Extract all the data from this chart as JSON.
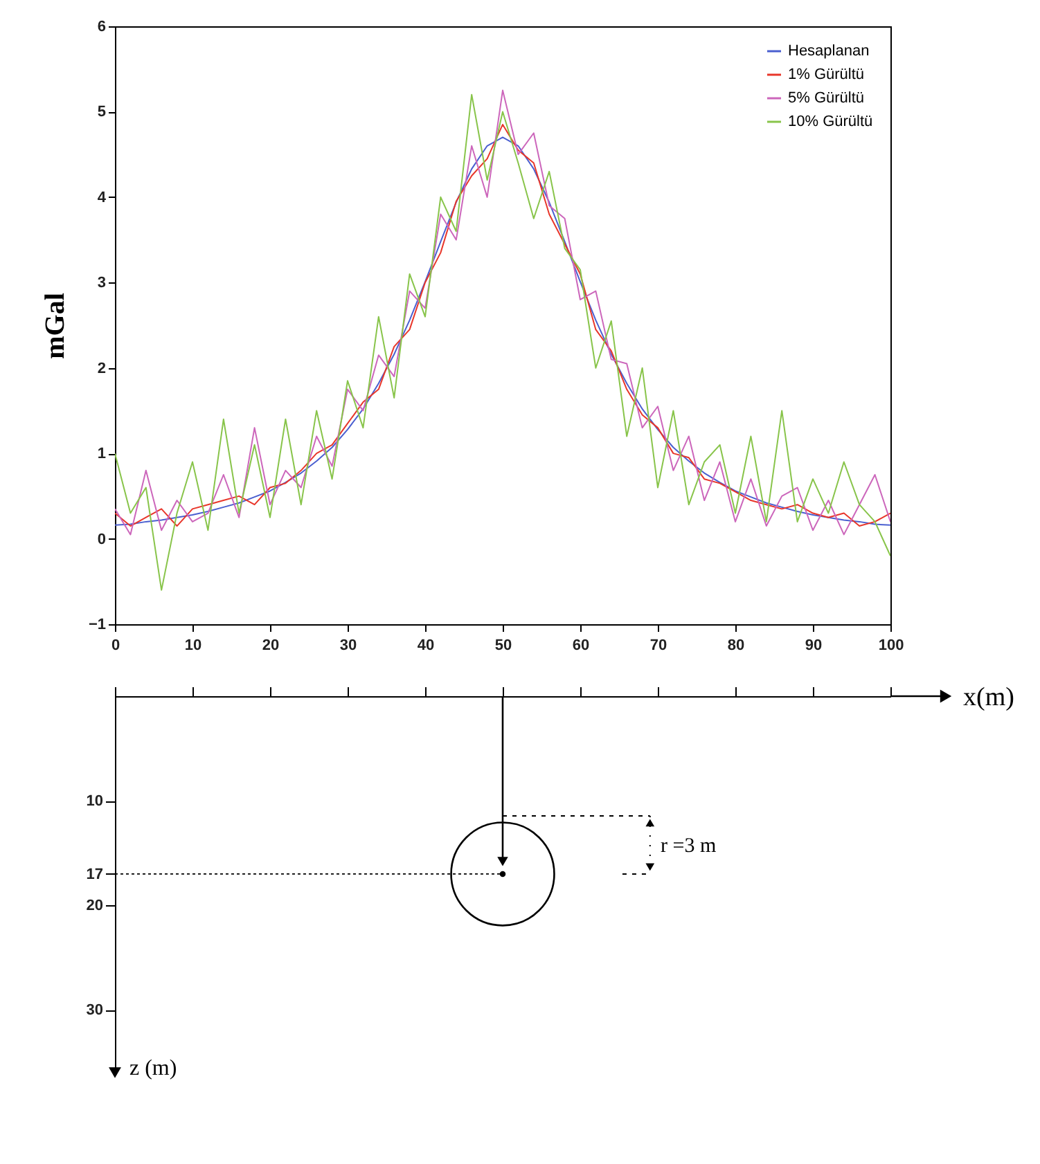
{
  "chart_data": [
    {
      "type": "line",
      "ylabel": "mGal",
      "x": [
        0,
        2,
        4,
        6,
        8,
        10,
        12,
        14,
        16,
        18,
        20,
        22,
        24,
        26,
        28,
        30,
        32,
        34,
        36,
        38,
        40,
        42,
        44,
        46,
        48,
        50,
        52,
        54,
        56,
        58,
        60,
        62,
        64,
        66,
        68,
        70,
        72,
        74,
        76,
        78,
        80,
        82,
        84,
        86,
        88,
        90,
        92,
        94,
        96,
        98,
        100
      ],
      "series": [
        {
          "name": "Hesaplanan",
          "color": "#4a5fd0",
          "values": [
            0.16,
            0.17,
            0.2,
            0.22,
            0.25,
            0.28,
            0.32,
            0.37,
            0.42,
            0.49,
            0.56,
            0.66,
            0.77,
            0.91,
            1.07,
            1.28,
            1.52,
            1.82,
            2.16,
            2.56,
            3.01,
            3.48,
            3.94,
            4.33,
            4.6,
            4.7,
            4.6,
            4.33,
            3.94,
            3.48,
            3.01,
            2.56,
            2.16,
            1.82,
            1.52,
            1.28,
            1.07,
            0.91,
            0.77,
            0.66,
            0.56,
            0.49,
            0.42,
            0.37,
            0.32,
            0.28,
            0.25,
            0.22,
            0.2,
            0.17,
            0.16
          ]
        },
        {
          "name": "1% Gürültü",
          "color": "#e8362a",
          "values": [
            0.3,
            0.15,
            0.25,
            0.35,
            0.15,
            0.35,
            0.4,
            0.45,
            0.5,
            0.4,
            0.6,
            0.65,
            0.8,
            1.0,
            1.1,
            1.35,
            1.6,
            1.75,
            2.25,
            2.45,
            3.0,
            3.35,
            3.95,
            4.25,
            4.45,
            4.85,
            4.55,
            4.4,
            3.8,
            3.45,
            3.1,
            2.45,
            2.2,
            1.75,
            1.45,
            1.3,
            1.0,
            0.95,
            0.7,
            0.65,
            0.55,
            0.45,
            0.4,
            0.35,
            0.4,
            0.3,
            0.25,
            0.3,
            0.15,
            0.2,
            0.3
          ]
        },
        {
          "name": "5% Gürültü",
          "color": "#cc66bb",
          "values": [
            0.35,
            0.05,
            0.8,
            0.1,
            0.45,
            0.2,
            0.3,
            0.75,
            0.25,
            1.3,
            0.4,
            0.8,
            0.6,
            1.2,
            0.85,
            1.75,
            1.5,
            2.15,
            1.9,
            2.9,
            2.7,
            3.8,
            3.5,
            4.6,
            4.0,
            5.25,
            4.5,
            4.75,
            3.9,
            3.75,
            2.8,
            2.9,
            2.1,
            2.05,
            1.3,
            1.55,
            0.8,
            1.2,
            0.45,
            0.9,
            0.2,
            0.7,
            0.15,
            0.5,
            0.6,
            0.1,
            0.45,
            0.05,
            0.4,
            0.75,
            0.2
          ]
        },
        {
          "name": "10% Gürültü",
          "color": "#88c44a",
          "values": [
            1.0,
            0.3,
            0.6,
            -0.6,
            0.3,
            0.9,
            0.1,
            1.4,
            0.3,
            1.1,
            0.25,
            1.4,
            0.4,
            1.5,
            0.7,
            1.85,
            1.3,
            2.6,
            1.65,
            3.1,
            2.6,
            4.0,
            3.6,
            5.2,
            4.2,
            5.0,
            4.4,
            3.75,
            4.3,
            3.4,
            3.15,
            2.0,
            2.55,
            1.2,
            2.0,
            0.6,
            1.5,
            0.4,
            0.9,
            1.1,
            0.3,
            1.2,
            0.2,
            1.5,
            0.2,
            0.7,
            0.3,
            0.9,
            0.4,
            0.2,
            -0.2
          ]
        }
      ],
      "xlim": [
        0,
        100
      ],
      "xticks": [
        0,
        10,
        20,
        30,
        40,
        50,
        60,
        70,
        80,
        90,
        100
      ],
      "ylim": [
        -1,
        6
      ],
      "yticks": [
        -1,
        0,
        1,
        2,
        3,
        4,
        5,
        6
      ],
      "legend": "top right",
      "grid": false
    },
    {
      "type": "scatter",
      "xlabel": "x(m)",
      "ylabel": "z (m)",
      "x": [
        50
      ],
      "series": [
        {
          "color": "#000000",
          "values": [
            17
          ]
        }
      ],
      "marker": "circle",
      "xlim": [
        0,
        100
      ],
      "xticks": [
        0,
        10,
        20,
        30,
        40,
        50,
        60,
        70,
        80,
        90,
        100
      ],
      "ylim": [
        36,
        0
      ],
      "yticks": [
        10,
        17,
        20,
        30
      ],
      "tick_labels": "y",
      "ref_lines": [
        {
          "axis": "y",
          "value": 17,
          "line_style": "dotted"
        }
      ],
      "annotations": [
        "r =3 m"
      ]
    }
  ]
}
